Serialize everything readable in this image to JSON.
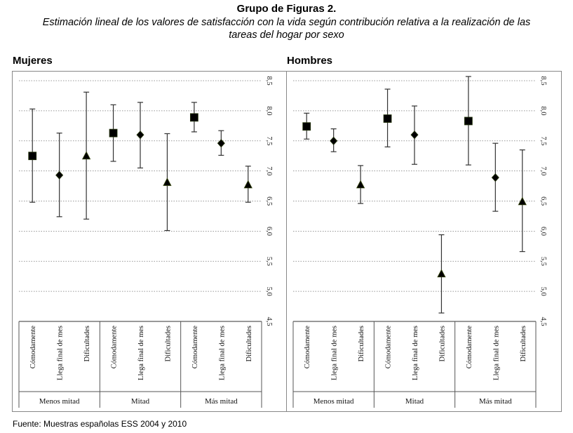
{
  "header": {
    "title": "Grupo de Figuras 2.",
    "subtitle": "Estimación lineal de los valores de satisfacción con la vida según contribución relativa a la realización de las tareas del hogar por sexo"
  },
  "footer": {
    "source": "Fuente: Muestras españolas ESS 2004 y 2010"
  },
  "chart_data": [
    {
      "type": "scatter",
      "panel": "Mujeres",
      "ylim": [
        4.5,
        8.5
      ],
      "yticks": [
        "4,5",
        "5,0",
        "5,5",
        "6,0",
        "6,5",
        "7,0",
        "7,5",
        "8,0",
        "8,5"
      ],
      "ytick_values": [
        4.5,
        5.0,
        5.5,
        6.0,
        6.5,
        7.0,
        7.5,
        8.0,
        8.5
      ],
      "grid": true,
      "groups": [
        "Menos mitad",
        "Mitad",
        "Más mitad"
      ],
      "categories": [
        "Cómodamente",
        "Llega final de mes",
        "Dificultades"
      ],
      "points": [
        {
          "group": "Menos mitad",
          "category": "Cómodamente",
          "marker": "square",
          "value": 7.25,
          "low": 6.48,
          "high": 8.03
        },
        {
          "group": "Menos mitad",
          "category": "Llega final de mes",
          "marker": "diamond",
          "value": 6.93,
          "low": 6.24,
          "high": 7.63
        },
        {
          "group": "Menos mitad",
          "category": "Dificultades",
          "marker": "triangle",
          "value": 7.25,
          "low": 6.2,
          "high": 8.31
        },
        {
          "group": "Mitad",
          "category": "Cómodamente",
          "marker": "square",
          "value": 7.63,
          "low": 7.16,
          "high": 8.1
        },
        {
          "group": "Mitad",
          "category": "Llega final de mes",
          "marker": "diamond",
          "value": 7.6,
          "low": 7.05,
          "high": 8.14
        },
        {
          "group": "Mitad",
          "category": "Dificultades",
          "marker": "triangle",
          "value": 6.81,
          "low": 6.01,
          "high": 7.62
        },
        {
          "group": "Más mitad",
          "category": "Cómodamente",
          "marker": "square",
          "value": 7.89,
          "low": 7.65,
          "high": 8.14
        },
        {
          "group": "Más mitad",
          "category": "Llega final de mes",
          "marker": "diamond",
          "value": 7.46,
          "low": 7.26,
          "high": 7.67
        },
        {
          "group": "Más mitad",
          "category": "Dificultades",
          "marker": "triangle",
          "value": 6.77,
          "low": 6.48,
          "high": 7.08
        }
      ]
    },
    {
      "type": "scatter",
      "panel": "Hombres",
      "ylim": [
        4.5,
        8.5
      ],
      "yticks": [
        "4,5",
        "5,0",
        "5,5",
        "6,0",
        "6,5",
        "7,0",
        "7,5",
        "8,0",
        "8,5"
      ],
      "ytick_values": [
        4.5,
        5.0,
        5.5,
        6.0,
        6.5,
        7.0,
        7.5,
        8.0,
        8.5
      ],
      "grid": true,
      "groups": [
        "Menos mitad",
        "Mitad",
        "Más mitad"
      ],
      "categories": [
        "Cómodamente",
        "Llega final de mes",
        "Dificultades"
      ],
      "points": [
        {
          "group": "Menos mitad",
          "category": "Cómodamente",
          "marker": "square",
          "value": 7.74,
          "low": 7.53,
          "high": 7.96
        },
        {
          "group": "Menos mitad",
          "category": "Llega final de mes",
          "marker": "diamond",
          "value": 7.5,
          "low": 7.32,
          "high": 7.7
        },
        {
          "group": "Menos mitad",
          "category": "Dificultades",
          "marker": "triangle",
          "value": 6.77,
          "low": 6.46,
          "high": 7.09
        },
        {
          "group": "Mitad",
          "category": "Cómodamente",
          "marker": "square",
          "value": 7.87,
          "low": 7.4,
          "high": 8.36
        },
        {
          "group": "Mitad",
          "category": "Llega final de mes",
          "marker": "diamond",
          "value": 7.6,
          "low": 7.11,
          "high": 8.08
        },
        {
          "group": "Mitad",
          "category": "Dificultades",
          "marker": "triangle",
          "value": 5.29,
          "low": 4.64,
          "high": 5.94
        },
        {
          "group": "Más mitad",
          "category": "Cómodamente",
          "marker": "square",
          "value": 7.83,
          "low": 7.1,
          "high": 8.57
        },
        {
          "group": "Más mitad",
          "category": "Llega final de mes",
          "marker": "diamond",
          "value": 6.89,
          "low": 6.33,
          "high": 7.46
        },
        {
          "group": "Más mitad",
          "category": "Dificultades",
          "marker": "triangle",
          "value": 6.49,
          "low": 5.66,
          "high": 7.35
        }
      ]
    }
  ]
}
